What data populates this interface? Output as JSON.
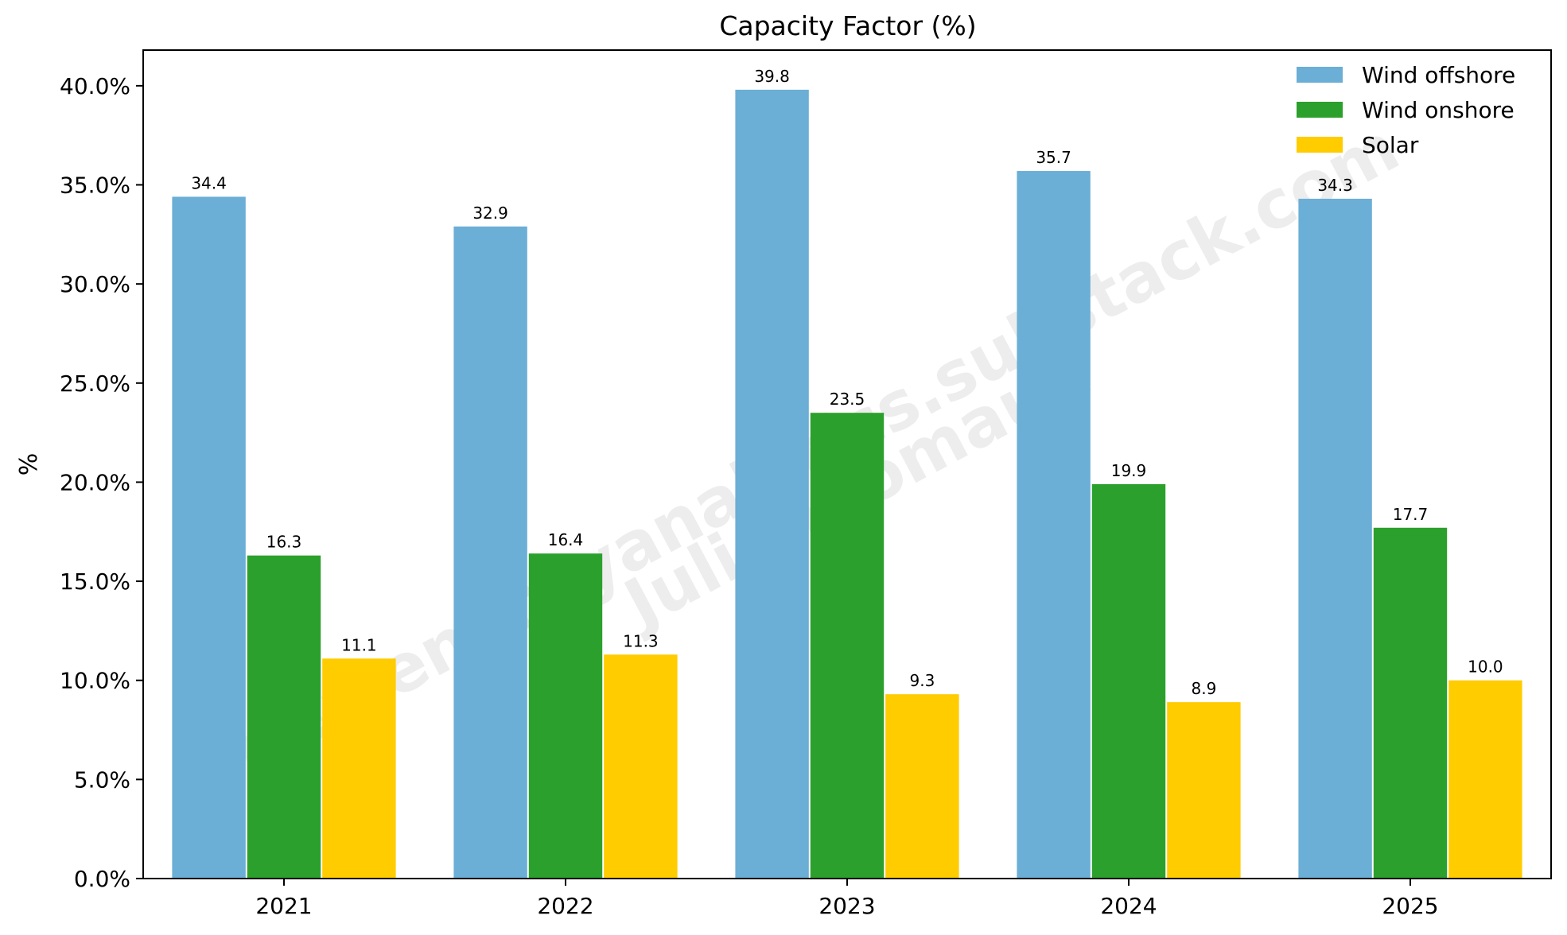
{
  "chart_data": {
    "type": "bar",
    "title": "Capacity Factor (%)",
    "xlabel": "",
    "ylabel": "%",
    "categories": [
      "2021",
      "2022",
      "2023",
      "2024",
      "2025"
    ],
    "series": [
      {
        "name": "Wind offshore",
        "color": "#6baed6",
        "values": [
          34.4,
          32.9,
          39.8,
          35.7,
          34.3
        ]
      },
      {
        "name": "Wind onshore",
        "color": "#2ca02c",
        "values": [
          16.3,
          16.4,
          23.5,
          19.9,
          17.7
        ]
      },
      {
        "name": "Solar",
        "color": "#ffcc00",
        "values": [
          11.1,
          11.3,
          9.3,
          8.9,
          10.0
        ]
      }
    ],
    "ylim": [
      0,
      41.8
    ],
    "yticks": [
      0,
      5,
      10,
      15,
      20,
      25,
      30,
      35,
      40
    ],
    "ytick_labels": [
      "0.0%",
      "5.0%",
      "10.0%",
      "15.0%",
      "20.0%",
      "25.0%",
      "30.0%",
      "35.0%",
      "40.0%"
    ],
    "data_labels": [
      [
        "34.4",
        "32.9",
        "39.8",
        "35.7",
        "34.3"
      ],
      [
        "16.3",
        "16.4",
        "23.5",
        "19.9",
        "17.7"
      ],
      [
        "11.1",
        "11.3",
        "9.3",
        "8.9",
        "10.0"
      ]
    ],
    "grid": false,
    "legend_position": "top-right"
  },
  "watermark": {
    "line1": "gemenergyanalytics.substack.com",
    "line2": "Julien Jomaux"
  }
}
